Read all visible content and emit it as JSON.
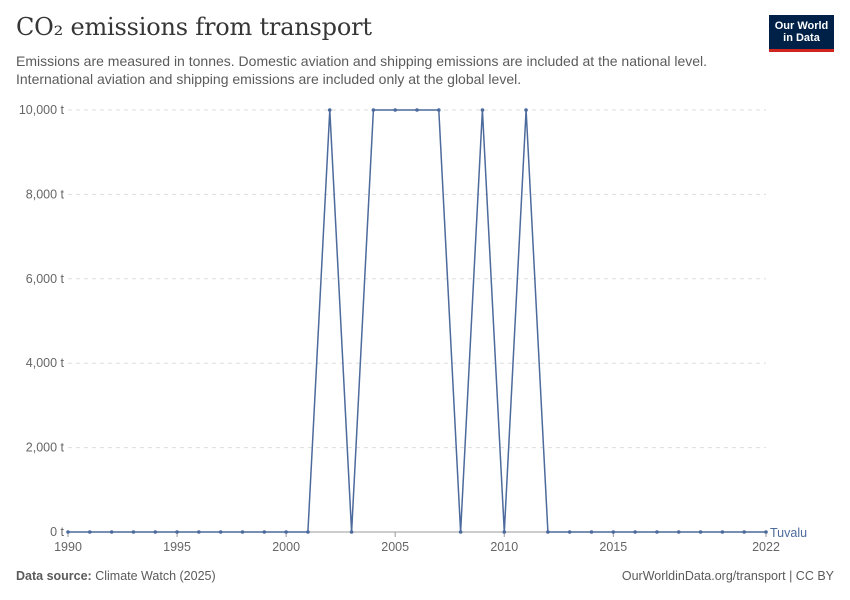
{
  "header": {
    "title": "CO₂ emissions from transport",
    "subtitle": "Emissions are measured in tonnes. Domestic aviation and shipping emissions are included at the national level. International aviation and shipping emissions are included only at the global level."
  },
  "logo": {
    "line1": "Our World",
    "line2": "in Data"
  },
  "footer": {
    "source_label": "Data source:",
    "source_text": "Climate Watch (2025)",
    "right_text": "OurWorldinData.org/transport | CC BY"
  },
  "colors": {
    "series": "#4c6a9c",
    "grid": "#dddddd",
    "axis": "#666666",
    "brand": "#002147",
    "brand_accent": "#ce261e"
  },
  "chart_data": {
    "type": "line",
    "title": "CO₂ emissions from transport",
    "xlabel": "",
    "ylabel": "",
    "xlim": [
      1990,
      2022
    ],
    "ylim": [
      0,
      10000
    ],
    "y_ticks": [
      {
        "value": 0,
        "label": "0 t"
      },
      {
        "value": 2000,
        "label": "2,000 t"
      },
      {
        "value": 4000,
        "label": "4,000 t"
      },
      {
        "value": 6000,
        "label": "6,000 t"
      },
      {
        "value": 8000,
        "label": "8,000 t"
      },
      {
        "value": 10000,
        "label": "10,000 t"
      }
    ],
    "x_ticks": [
      {
        "value": 1990,
        "label": "1990"
      },
      {
        "value": 1995,
        "label": "1995"
      },
      {
        "value": 2000,
        "label": "2000"
      },
      {
        "value": 2005,
        "label": "2005"
      },
      {
        "value": 2010,
        "label": "2010"
      },
      {
        "value": 2015,
        "label": "2015"
      },
      {
        "value": 2022,
        "label": "2022"
      }
    ],
    "grid": true,
    "series": [
      {
        "name": "Tuvalu",
        "x": [
          1990,
          1991,
          1992,
          1993,
          1994,
          1995,
          1996,
          1997,
          1998,
          1999,
          2000,
          2001,
          2002,
          2003,
          2004,
          2005,
          2006,
          2007,
          2008,
          2009,
          2010,
          2011,
          2012,
          2013,
          2014,
          2015,
          2016,
          2017,
          2018,
          2019,
          2020,
          2021,
          2022
        ],
        "values": [
          0,
          0,
          0,
          0,
          0,
          0,
          0,
          0,
          0,
          0,
          0,
          0,
          10000,
          0,
          10000,
          10000,
          10000,
          10000,
          0,
          10000,
          0,
          10000,
          0,
          0,
          0,
          0,
          0,
          0,
          0,
          0,
          0,
          0,
          0
        ]
      }
    ]
  }
}
